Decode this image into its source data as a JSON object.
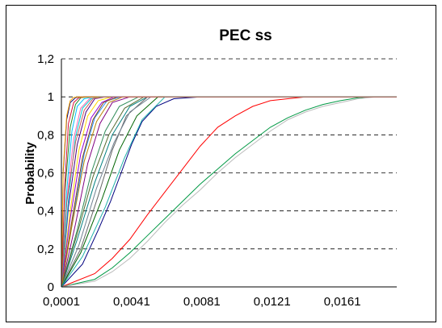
{
  "chart_data": {
    "type": "line",
    "title": "PEC ss",
    "xlabel": "",
    "ylabel": "Probability",
    "x_tick_labels": [
      "0,0001",
      "0,0041",
      "0,0081",
      "0,0121",
      "0,0161"
    ],
    "x_ticks": [
      0.0001,
      0.0041,
      0.0081,
      0.0121,
      0.0161
    ],
    "xlim": [
      0.0001,
      0.0192
    ],
    "y_tick_labels": [
      "0",
      "0,2",
      "0,4",
      "0,6",
      "0,8",
      "1",
      "1,2"
    ],
    "y_ticks": [
      0,
      0.2,
      0.4,
      0.6,
      0.8,
      1.0,
      1.2
    ],
    "ylim": [
      0,
      1.2
    ],
    "gridlines": "horizontal dashed",
    "legend": "none",
    "series": [
      {
        "color": "#00007F",
        "x": [
          0.0001,
          0.0013,
          0.0022,
          0.0029,
          0.0035,
          0.0041,
          0.0047,
          0.0055,
          0.0065,
          0.008
        ],
        "values": [
          0.0,
          0.12,
          0.3,
          0.45,
          0.6,
          0.75,
          0.87,
          0.95,
          0.99,
          1.0
        ]
      },
      {
        "color": "#FF0000",
        "x": [
          0.0001,
          0.002,
          0.003,
          0.004,
          0.005,
          0.006,
          0.007,
          0.008,
          0.009,
          0.01,
          0.011,
          0.012,
          0.013,
          0.014
        ],
        "values": [
          0.0,
          0.07,
          0.15,
          0.25,
          0.38,
          0.5,
          0.62,
          0.74,
          0.84,
          0.9,
          0.95,
          0.98,
          0.99,
          1.0
        ]
      },
      {
        "color": "#009944",
        "x": [
          0.0001,
          0.002,
          0.003,
          0.004,
          0.005,
          0.006,
          0.007,
          0.008,
          0.009,
          0.01,
          0.011,
          0.012,
          0.013,
          0.014,
          0.015,
          0.016,
          0.017,
          0.018
        ],
        "values": [
          0.0,
          0.04,
          0.1,
          0.18,
          0.27,
          0.36,
          0.45,
          0.54,
          0.62,
          0.7,
          0.77,
          0.84,
          0.89,
          0.93,
          0.96,
          0.98,
          0.995,
          1.0
        ]
      },
      {
        "color": "#BBBBBB",
        "x": [
          0.0001,
          0.002,
          0.003,
          0.004,
          0.005,
          0.006,
          0.007,
          0.008,
          0.009,
          0.01,
          0.011,
          0.012,
          0.013,
          0.014,
          0.015,
          0.016,
          0.017,
          0.018
        ],
        "values": [
          0.0,
          0.03,
          0.08,
          0.15,
          0.24,
          0.34,
          0.43,
          0.51,
          0.6,
          0.68,
          0.75,
          0.82,
          0.88,
          0.92,
          0.95,
          0.97,
          0.99,
          1.0
        ]
      },
      {
        "color": "#008080",
        "x": [
          0.0001,
          0.001,
          0.002,
          0.003,
          0.004,
          0.005
        ],
        "values": [
          0.0,
          0.25,
          0.55,
          0.8,
          0.95,
          1.0
        ]
      },
      {
        "color": "#666666",
        "x": [
          0.0001,
          0.0012,
          0.0022,
          0.003,
          0.0038,
          0.005
        ],
        "values": [
          0.0,
          0.2,
          0.48,
          0.72,
          0.9,
          1.0
        ]
      },
      {
        "color": "#2E8B57",
        "x": [
          0.0001,
          0.001,
          0.0018,
          0.0026,
          0.0034,
          0.0045
        ],
        "values": [
          0.0,
          0.3,
          0.6,
          0.82,
          0.95,
          1.0
        ]
      },
      {
        "color": "#800080",
        "x": [
          0.0001,
          0.0009,
          0.0016,
          0.0023,
          0.003,
          0.004
        ],
        "values": [
          0.0,
          0.33,
          0.65,
          0.86,
          0.97,
          1.0
        ]
      },
      {
        "color": "#1E90FF",
        "x": [
          0.0001,
          0.0008,
          0.0014,
          0.002,
          0.0027,
          0.0035
        ],
        "values": [
          0.0,
          0.38,
          0.7,
          0.89,
          0.98,
          1.0
        ]
      },
      {
        "color": "#FFD700",
        "x": [
          0.0001,
          0.0006,
          0.0011,
          0.0016,
          0.0022,
          0.003
        ],
        "values": [
          0.0,
          0.4,
          0.72,
          0.9,
          0.98,
          1.0
        ]
      },
      {
        "color": "#8B4513",
        "x": [
          0.0001,
          0.0007,
          0.0013,
          0.0019,
          0.0025,
          0.0033
        ],
        "values": [
          0.0,
          0.35,
          0.68,
          0.88,
          0.97,
          1.0
        ]
      },
      {
        "color": "#4B0082",
        "x": [
          0.0001,
          0.0005,
          0.001,
          0.0015,
          0.002,
          0.0026
        ],
        "values": [
          0.0,
          0.42,
          0.75,
          0.92,
          0.99,
          1.0
        ]
      },
      {
        "color": "#FF69B4",
        "x": [
          0.0001,
          0.0004,
          0.0008,
          0.0012,
          0.0017,
          0.0023
        ],
        "values": [
          0.0,
          0.45,
          0.78,
          0.94,
          0.99,
          1.0
        ]
      },
      {
        "color": "#00BFFF",
        "x": [
          0.0001,
          0.0004,
          0.0007,
          0.001,
          0.0014,
          0.0019
        ],
        "values": [
          0.0,
          0.5,
          0.82,
          0.95,
          0.99,
          1.0
        ]
      },
      {
        "color": "#228B22",
        "x": [
          0.0001,
          0.0003,
          0.0006,
          0.0009,
          0.0012,
          0.0016
        ],
        "values": [
          0.0,
          0.5,
          0.84,
          0.96,
          0.995,
          1.0
        ]
      },
      {
        "color": "#DC143C",
        "x": [
          0.0001,
          0.0003,
          0.0005,
          0.0008,
          0.0011,
          0.0014
        ],
        "values": [
          0.0,
          0.55,
          0.86,
          0.97,
          0.995,
          1.0
        ]
      },
      {
        "color": "#000080",
        "x": [
          0.0001,
          0.0002,
          0.0004,
          0.0006,
          0.0009,
          0.0012
        ],
        "values": [
          0.0,
          0.6,
          0.88,
          0.97,
          0.995,
          1.0
        ]
      },
      {
        "color": "#FFA500",
        "x": [
          0.0001,
          0.0002,
          0.0004,
          0.0006,
          0.0008,
          0.0011
        ],
        "values": [
          0.0,
          0.62,
          0.9,
          0.98,
          0.997,
          1.0
        ]
      },
      {
        "color": "#556B2F",
        "x": [
          0.0001,
          0.001,
          0.0019,
          0.0028,
          0.0037,
          0.0048
        ],
        "values": [
          0.0,
          0.28,
          0.58,
          0.8,
          0.94,
          1.0
        ]
      },
      {
        "color": "#708090",
        "x": [
          0.0001,
          0.0011,
          0.0021,
          0.0031,
          0.004,
          0.0052
        ],
        "values": [
          0.0,
          0.22,
          0.52,
          0.76,
          0.92,
          1.0
        ]
      },
      {
        "color": "#9400D3",
        "x": [
          0.0001,
          0.0006,
          0.0012,
          0.0018,
          0.0024,
          0.0031
        ],
        "values": [
          0.0,
          0.36,
          0.7,
          0.89,
          0.97,
          1.0
        ]
      },
      {
        "color": "#00CED1",
        "x": [
          0.0001,
          0.0005,
          0.0009,
          0.0013,
          0.0018,
          0.0024
        ],
        "values": [
          0.0,
          0.46,
          0.79,
          0.94,
          0.99,
          1.0
        ]
      },
      {
        "color": "#B8860B",
        "x": [
          0.0001,
          0.0007,
          0.0014,
          0.0021,
          0.0028,
          0.0036
        ],
        "values": [
          0.0,
          0.32,
          0.66,
          0.87,
          0.97,
          1.0
        ]
      },
      {
        "color": "#006400",
        "x": [
          0.0001,
          0.0012,
          0.0024,
          0.0034,
          0.0044,
          0.0056
        ],
        "values": [
          0.0,
          0.18,
          0.46,
          0.72,
          0.9,
          1.0
        ]
      },
      {
        "color": "#20B2AA",
        "x": [
          0.0001,
          0.0013,
          0.0026,
          0.0037,
          0.0047,
          0.006
        ],
        "values": [
          0.0,
          0.16,
          0.42,
          0.68,
          0.88,
          1.0
        ]
      },
      {
        "color": "#CD5C5C",
        "x": [
          0.0001,
          0.0004,
          0.0009,
          0.0014,
          0.0019,
          0.0025
        ],
        "values": [
          0.0,
          0.44,
          0.76,
          0.93,
          0.99,
          1.0
        ]
      }
    ]
  }
}
